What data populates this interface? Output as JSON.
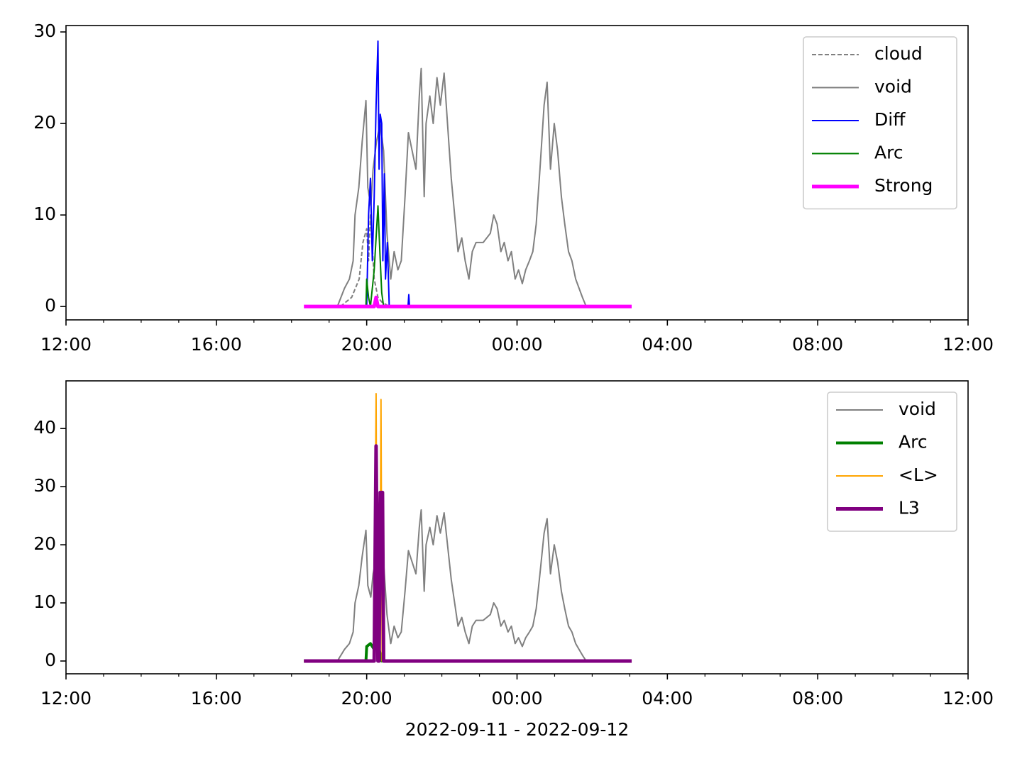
{
  "chart_data": [
    {
      "type": "line",
      "xlim": [
        0,
        24
      ],
      "ylim": [
        -1.46,
        30.7
      ],
      "xticks": [
        {
          "value": 0,
          "label": "12:00"
        },
        {
          "value": 4,
          "label": "16:00"
        },
        {
          "value": 8,
          "label": "20:00"
        },
        {
          "value": 12,
          "label": "00:00"
        },
        {
          "value": 16,
          "label": "04:00"
        },
        {
          "value": 20,
          "label": "08:00"
        },
        {
          "value": 24,
          "label": "12:00"
        }
      ],
      "xminorticks": [
        1,
        2,
        3,
        5,
        6,
        7,
        9,
        10,
        11,
        13,
        14,
        15,
        17,
        18,
        19,
        21,
        22,
        23
      ],
      "yticks": [
        0,
        10,
        20,
        30
      ],
      "legend": "upper right",
      "series": [
        {
          "name": "cloud",
          "color": "#808080",
          "linestyle": "dashed",
          "linewidth": 2,
          "x": [
            7.3,
            7.6,
            7.8,
            7.9,
            8.0,
            8.05,
            8.1,
            8.2,
            8.3,
            8.4,
            8.6
          ],
          "values": [
            0,
            1,
            3,
            7,
            8.5,
            5,
            10,
            3,
            1,
            0.5,
            0
          ]
        },
        {
          "name": "void",
          "color": "#808080",
          "linestyle": "solid",
          "linewidth": 2,
          "x": [
            7.22,
            7.41,
            7.54,
            7.64,
            7.69,
            7.79,
            7.88,
            7.98,
            8.03,
            8.11,
            8.17,
            8.26,
            8.36,
            8.45,
            8.54,
            8.64,
            8.73,
            8.83,
            8.92,
            9.02,
            9.11,
            9.21,
            9.31,
            9.4,
            9.45,
            9.53,
            9.58,
            9.68,
            9.77,
            9.87,
            9.96,
            10.06,
            10.15,
            10.25,
            10.34,
            10.43,
            10.53,
            10.62,
            10.72,
            10.81,
            10.91,
            11.1,
            11.29,
            11.38,
            11.47,
            11.57,
            11.66,
            11.76,
            11.85,
            11.95,
            12.04,
            12.14,
            12.23,
            12.33,
            12.42,
            12.51,
            12.61,
            12.72,
            12.8,
            12.89,
            12.99,
            13.08,
            13.18,
            13.27,
            13.37,
            13.46,
            13.56,
            13.65,
            13.74,
            13.84
          ],
          "values": [
            0,
            2,
            3,
            5,
            10,
            13,
            18,
            22.5,
            13,
            11,
            15,
            18,
            20,
            17,
            8,
            3,
            6,
            4,
            5,
            12,
            19,
            17,
            15,
            23,
            26,
            12,
            20,
            23,
            20,
            25,
            22,
            25.5,
            20,
            14,
            10,
            6,
            7.5,
            5,
            3,
            6,
            7,
            7,
            8,
            10,
            9,
            6,
            7,
            5,
            6,
            3,
            4,
            2.5,
            4,
            5,
            6,
            9,
            15,
            22,
            24.5,
            15,
            20,
            17,
            12,
            9,
            6,
            5,
            3,
            2,
            1,
            0
          ]
        },
        {
          "name": "Diff",
          "color": "#0000ff",
          "linestyle": "solid",
          "linewidth": 2,
          "x": [
            8.0,
            8.05,
            8.1,
            8.15,
            8.2,
            8.25,
            8.3,
            8.33,
            8.36,
            8.4,
            8.43,
            8.47,
            8.5,
            8.55,
            8.6,
            9.1,
            9.12,
            9.14
          ],
          "values": [
            0,
            10,
            14,
            5,
            12,
            22,
            29,
            15,
            21,
            20,
            5,
            14.5,
            3,
            7,
            0,
            0,
            1.3,
            0
          ]
        },
        {
          "name": "Arc",
          "color": "#008000",
          "linestyle": "solid",
          "linewidth": 2,
          "x": [
            7.98,
            8.0,
            8.05,
            8.1,
            8.2,
            8.3,
            8.35,
            8.4,
            8.45
          ],
          "values": [
            0,
            3,
            1,
            0,
            4,
            11,
            6,
            1.5,
            0
          ]
        },
        {
          "name": "Strong",
          "color": "#ff00ff",
          "linestyle": "solid",
          "linewidth": 5,
          "x": [
            6.33,
            8.2,
            8.25,
            8.3,
            15.05
          ],
          "values": [
            0,
            0,
            1,
            0,
            0
          ]
        }
      ]
    },
    {
      "type": "line",
      "xlabel": "2022-09-11 - 2022-09-12",
      "xlim": [
        0,
        24
      ],
      "ylim": [
        -2.2,
        48.2
      ],
      "xticks": [
        {
          "value": 0,
          "label": "12:00"
        },
        {
          "value": 4,
          "label": "16:00"
        },
        {
          "value": 8,
          "label": "20:00"
        },
        {
          "value": 12,
          "label": "00:00"
        },
        {
          "value": 16,
          "label": "04:00"
        },
        {
          "value": 20,
          "label": "08:00"
        },
        {
          "value": 24,
          "label": "12:00"
        }
      ],
      "xminorticks": [
        1,
        2,
        3,
        5,
        6,
        7,
        9,
        10,
        11,
        13,
        14,
        15,
        17,
        18,
        19,
        21,
        22,
        23
      ],
      "yticks": [
        0,
        10,
        20,
        30,
        40
      ],
      "legend": "upper right",
      "series": [
        {
          "name": "void",
          "color": "#808080",
          "linestyle": "solid",
          "linewidth": 2,
          "x": [
            7.22,
            7.41,
            7.54,
            7.64,
            7.69,
            7.79,
            7.88,
            7.98,
            8.03,
            8.11,
            8.17,
            8.26,
            8.36,
            8.45,
            8.54,
            8.64,
            8.73,
            8.83,
            8.92,
            9.02,
            9.11,
            9.21,
            9.31,
            9.4,
            9.45,
            9.53,
            9.58,
            9.68,
            9.77,
            9.87,
            9.96,
            10.06,
            10.15,
            10.25,
            10.34,
            10.43,
            10.53,
            10.62,
            10.72,
            10.81,
            10.91,
            11.1,
            11.29,
            11.38,
            11.47,
            11.57,
            11.66,
            11.76,
            11.85,
            11.95,
            12.04,
            12.14,
            12.23,
            12.33,
            12.42,
            12.51,
            12.61,
            12.72,
            12.8,
            12.89,
            12.99,
            13.08,
            13.18,
            13.27,
            13.37,
            13.46,
            13.56,
            13.65,
            13.74,
            13.84
          ],
          "values": [
            0,
            2,
            3,
            5,
            10,
            13,
            18,
            22.5,
            13,
            11,
            15,
            18,
            20,
            17,
            8,
            3,
            6,
            4,
            5,
            12,
            19,
            17,
            15,
            23,
            26,
            12,
            20,
            23,
            20,
            25,
            22,
            25.5,
            20,
            14,
            10,
            6,
            7.5,
            5,
            3,
            6,
            7,
            7,
            8,
            10,
            9,
            6,
            7,
            5,
            6,
            3,
            4,
            2.5,
            4,
            5,
            6,
            9,
            15,
            22,
            24.5,
            15,
            20,
            17,
            12,
            9,
            6,
            5,
            3,
            2,
            1,
            0
          ]
        },
        {
          "name": "Arc",
          "color": "#008000",
          "linestyle": "solid",
          "linewidth": 4,
          "x": [
            6.33,
            7.98,
            8.0,
            8.1,
            8.2,
            8.3,
            8.4,
            15.05
          ],
          "values": [
            0,
            0,
            2.5,
            3,
            2,
            3,
            0,
            0
          ]
        },
        {
          "name": "<L>",
          "color": "#ffa500",
          "linestyle": "solid",
          "linewidth": 2,
          "x": [
            6.33,
            8.2,
            8.25,
            8.28,
            8.35,
            8.38,
            8.41,
            15.05
          ],
          "values": [
            0,
            0,
            46,
            0,
            0,
            45,
            0,
            0
          ]
        },
        {
          "name": "L3",
          "color": "#800080",
          "linestyle": "solid",
          "linewidth": 5,
          "x": [
            6.33,
            8.2,
            8.25,
            8.3,
            8.33,
            8.36,
            8.42,
            8.45,
            15.05
          ],
          "values": [
            0,
            0,
            37,
            0,
            0,
            29,
            29,
            0,
            0
          ]
        }
      ]
    }
  ]
}
